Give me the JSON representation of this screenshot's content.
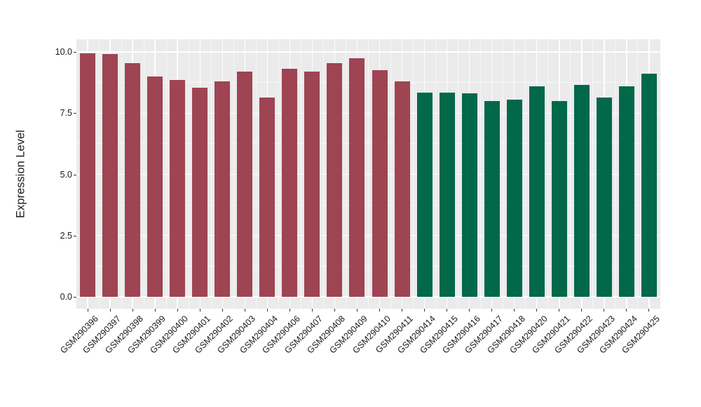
{
  "chart_data": {
    "type": "bar",
    "title": "",
    "xlabel": "",
    "ylabel": "Expression Level",
    "categories": [
      "GSM290396",
      "GSM290397",
      "GSM290398",
      "GSM290399",
      "GSM290400",
      "GSM290401",
      "GSM290402",
      "GSM290403",
      "GSM290404",
      "GSM290406",
      "GSM290407",
      "GSM290408",
      "GSM290409",
      "GSM290410",
      "GSM290411",
      "GSM290414",
      "GSM290415",
      "GSM290416",
      "GSM290417",
      "GSM290418",
      "GSM290420",
      "GSM290421",
      "GSM290422",
      "GSM290423",
      "GSM290424",
      "GSM290425"
    ],
    "values": [
      9.95,
      9.9,
      9.55,
      9.0,
      8.85,
      8.55,
      8.8,
      9.2,
      8.15,
      9.3,
      9.2,
      9.55,
      9.75,
      9.25,
      8.8,
      8.35,
      8.35,
      8.3,
      8.0,
      8.05,
      8.6,
      8.0,
      8.65,
      8.15,
      8.6,
      9.1
    ],
    "bar_colors": [
      "#9E4452",
      "#9E4452",
      "#9E4452",
      "#9E4452",
      "#9E4452",
      "#9E4452",
      "#9E4452",
      "#9E4452",
      "#9E4452",
      "#9E4452",
      "#9E4452",
      "#9E4452",
      "#9E4452",
      "#9E4452",
      "#9E4452",
      "#02684A",
      "#02684A",
      "#02684A",
      "#02684A",
      "#02684A",
      "#02684A",
      "#02684A",
      "#02684A",
      "#02684A",
      "#02684A",
      "#02684A"
    ],
    "ylim": [
      0,
      10.5
    ],
    "yticks": [
      0,
      2.5,
      5,
      7.5,
      10
    ],
    "ytick_labels": [
      "0.0",
      "2.5",
      "5.0",
      "7.5",
      "10.0"
    ],
    "minor_yticks": [
      1.25,
      3.75,
      6.25,
      8.75
    ],
    "x_tick_angle": 45,
    "grid": "on",
    "legend": "none",
    "panel_background": "#EBEBEB",
    "grid_color": "#FFFFFF",
    "tick_mark_color": "#333333",
    "text_color": "#1A1A1A"
  }
}
